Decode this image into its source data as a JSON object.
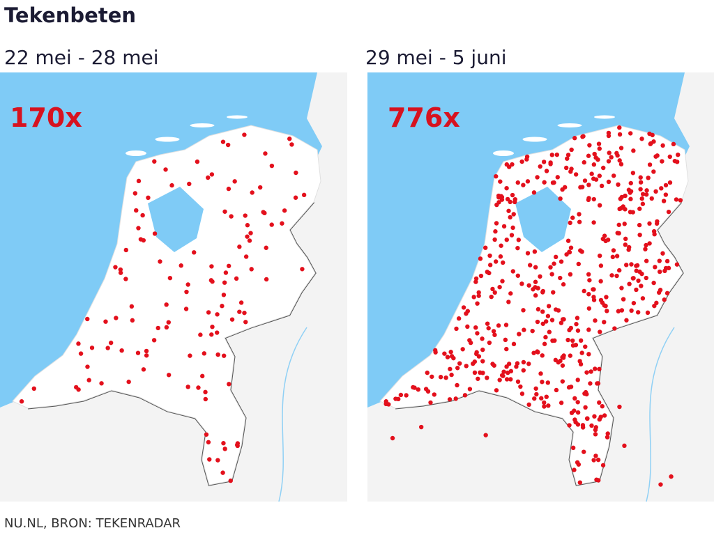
{
  "header": {
    "title": "Tekenbeten"
  },
  "panels": [
    {
      "period": "22 mei - 28 mei",
      "count": "170x"
    },
    {
      "period": "29 mei - 5 juni",
      "count": "776x"
    }
  ],
  "footer": {
    "source": "NU.NL, BRON: TEKENRADAR"
  }
}
